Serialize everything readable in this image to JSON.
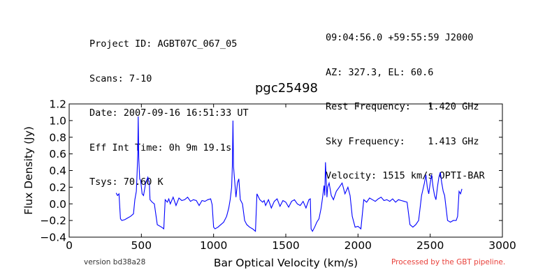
{
  "header": {
    "left": [
      "Project ID: AGBT07C_067_05",
      "Scans: 7-10",
      "Date: 2007-09-16 16:51:33 UT",
      "Eff Int Time: 0h 9m 19.1s",
      "Tsys: 70.60 K"
    ],
    "right": [
      "09:04:56.0 +59:55:59 J2000",
      "AZ: 327.3, EL: 60.6",
      "Rest Frequency:   1.420 GHz",
      "Sky Frequency:    1.413 GHz",
      "Velocity: 1515 km/s OPTI-BAR"
    ]
  },
  "footer": {
    "version": "version bd38a28",
    "pipeline": "Processed by the GBT pipeline.",
    "pipeline_color": "#e8403a"
  },
  "chart_data": {
    "type": "line",
    "title": "pgc25498",
    "xlabel": "Bar Optical Velocity (km/s)",
    "ylabel": "Flux Density (Jy)",
    "xlim": [
      0,
      3000
    ],
    "ylim": [
      -0.4,
      1.2
    ],
    "x_ticks": [
      0,
      500,
      1000,
      1500,
      2000,
      2500,
      3000
    ],
    "x_tick_labels": [
      "0",
      "500",
      "1000",
      "1500",
      "2000",
      "2500",
      "3000"
    ],
    "y_ticks": [
      -0.4,
      -0.2,
      0.0,
      0.2,
      0.4,
      0.6,
      0.8,
      1.0,
      1.2
    ],
    "y_tick_labels": [
      "−0.4",
      "−0.2",
      "0.0",
      "0.2",
      "0.4",
      "0.6",
      "0.8",
      "1.0",
      "1.2"
    ],
    "grid": false,
    "series": [
      {
        "color": "#0000ff",
        "x": [
          325,
          335,
          345,
          355,
          365,
          385,
          405,
          425,
          445,
          455,
          465,
          470,
          475,
          478,
          482,
          488,
          495,
          505,
          515,
          530,
          545,
          555,
          560,
          575,
          590,
          610,
          640,
          655,
          665,
          680,
          690,
          700,
          720,
          740,
          760,
          780,
          800,
          820,
          840,
          860,
          880,
          900,
          920,
          940,
          960,
          980,
          990,
          1000,
          1010,
          1030,
          1050,
          1070,
          1090,
          1105,
          1115,
          1125,
          1130,
          1134,
          1138,
          1145,
          1155,
          1165,
          1175,
          1185,
          1200,
          1215,
          1230,
          1250,
          1270,
          1290,
          1300,
          1320,
          1340,
          1350,
          1360,
          1380,
          1400,
          1420,
          1440,
          1460,
          1480,
          1500,
          1520,
          1540,
          1560,
          1580,
          1600,
          1620,
          1640,
          1660,
          1670,
          1675,
          1685,
          1700,
          1715,
          1730,
          1745,
          1755,
          1765,
          1770,
          1775,
          1785,
          1790,
          1800,
          1815,
          1830,
          1850,
          1870,
          1890,
          1910,
          1930,
          1945,
          1960,
          1980,
          2000,
          2020,
          2040,
          2060,
          2080,
          2100,
          2120,
          2140,
          2160,
          2180,
          2200,
          2220,
          2240,
          2260,
          2280,
          2300,
          2320,
          2340,
          2360,
          2380,
          2400,
          2420,
          2440,
          2460,
          2470,
          2480,
          2490,
          2500,
          2510,
          2520,
          2530,
          2540,
          2550,
          2560,
          2570,
          2580,
          2590,
          2600,
          2620,
          2640,
          2660,
          2680,
          2690,
          2700,
          2710,
          2720
        ],
        "y": [
          0.13,
          0.1,
          0.12,
          -0.18,
          -0.2,
          -0.19,
          -0.17,
          -0.15,
          -0.12,
          0.05,
          0.15,
          0.35,
          0.6,
          1.05,
          0.55,
          0.3,
          0.28,
          0.12,
          0.1,
          0.25,
          0.32,
          0.25,
          0.05,
          0.02,
          0.0,
          -0.25,
          -0.28,
          -0.3,
          0.05,
          0.02,
          0.06,
          0.0,
          0.08,
          -0.02,
          0.07,
          0.04,
          0.05,
          0.08,
          0.03,
          0.05,
          0.04,
          -0.02,
          0.04,
          0.03,
          0.05,
          0.06,
          -0.01,
          -0.28,
          -0.3,
          -0.28,
          -0.25,
          -0.22,
          -0.15,
          -0.05,
          0.05,
          0.2,
          0.45,
          1.0,
          0.45,
          0.3,
          0.08,
          0.25,
          0.3,
          0.05,
          0.0,
          -0.2,
          -0.25,
          -0.28,
          -0.3,
          -0.33,
          0.12,
          0.05,
          0.02,
          0.04,
          -0.02,
          0.05,
          -0.05,
          0.03,
          0.06,
          -0.03,
          0.04,
          0.02,
          -0.04,
          0.03,
          0.05,
          0.0,
          -0.02,
          0.03,
          -0.05,
          0.05,
          0.06,
          -0.3,
          -0.33,
          -0.28,
          -0.22,
          -0.18,
          -0.05,
          0.08,
          0.22,
          0.1,
          0.5,
          0.08,
          0.2,
          0.25,
          0.1,
          0.05,
          0.15,
          0.2,
          0.25,
          0.12,
          0.2,
          0.1,
          -0.15,
          -0.28,
          -0.27,
          -0.3,
          0.05,
          0.02,
          0.07,
          0.05,
          0.03,
          0.06,
          0.08,
          0.04,
          0.05,
          0.03,
          0.06,
          0.02,
          0.05,
          0.04,
          0.03,
          0.02,
          -0.25,
          -0.28,
          -0.25,
          -0.2,
          0.1,
          0.25,
          0.35,
          0.2,
          0.12,
          0.25,
          0.35,
          0.2,
          0.1,
          0.05,
          0.2,
          0.32,
          0.38,
          0.25,
          0.15,
          0.1,
          -0.2,
          -0.22,
          -0.2,
          -0.2,
          -0.15,
          0.15,
          0.12,
          0.18
        ]
      }
    ]
  }
}
